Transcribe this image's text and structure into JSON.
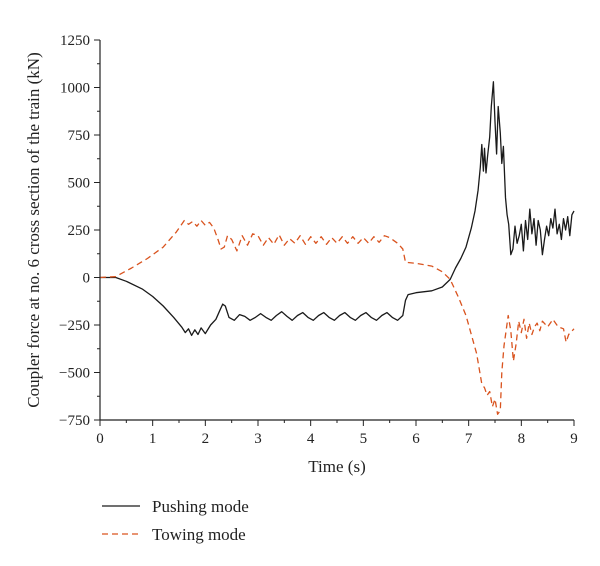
{
  "chart_data": {
    "type": "line",
    "title": "",
    "xlabel": "Time (s)",
    "ylabel": "Coupler force at no. 6 cross section of the train (kN)",
    "xlim": [
      0,
      9
    ],
    "ylim": [
      -750,
      1250
    ],
    "xticks": [
      "0",
      "1",
      "2",
      "3",
      "4",
      "5",
      "6",
      "7",
      "8",
      "9"
    ],
    "yticks": [
      "−750",
      "−500",
      "−250",
      "0",
      "250",
      "500",
      "750",
      "1000",
      "1250"
    ],
    "grid": false,
    "legend_position": "bottom-left, below plot",
    "series": [
      {
        "name": "Pushing mode",
        "color": "#1a1a1a",
        "dash": "solid",
        "points": [
          [
            0,
            0
          ],
          [
            0.3,
            0
          ],
          [
            0.5,
            -20
          ],
          [
            0.8,
            -60
          ],
          [
            1.0,
            -100
          ],
          [
            1.2,
            -150
          ],
          [
            1.4,
            -210
          ],
          [
            1.55,
            -260
          ],
          [
            1.62,
            -290
          ],
          [
            1.68,
            -270
          ],
          [
            1.74,
            -305
          ],
          [
            1.8,
            -275
          ],
          [
            1.86,
            -300
          ],
          [
            1.92,
            -265
          ],
          [
            2.0,
            -295
          ],
          [
            2.1,
            -250
          ],
          [
            2.2,
            -220
          ],
          [
            2.28,
            -170
          ],
          [
            2.33,
            -140
          ],
          [
            2.38,
            -150
          ],
          [
            2.45,
            -210
          ],
          [
            2.55,
            -225
          ],
          [
            2.65,
            -195
          ],
          [
            2.75,
            -205
          ],
          [
            2.85,
            -225
          ],
          [
            2.95,
            -210
          ],
          [
            3.05,
            -190
          ],
          [
            3.15,
            -210
          ],
          [
            3.25,
            -225
          ],
          [
            3.35,
            -200
          ],
          [
            3.45,
            -180
          ],
          [
            3.55,
            -205
          ],
          [
            3.65,
            -225
          ],
          [
            3.75,
            -200
          ],
          [
            3.85,
            -185
          ],
          [
            3.95,
            -210
          ],
          [
            4.05,
            -225
          ],
          [
            4.15,
            -200
          ],
          [
            4.25,
            -185
          ],
          [
            4.35,
            -210
          ],
          [
            4.45,
            -225
          ],
          [
            4.55,
            -200
          ],
          [
            4.65,
            -185
          ],
          [
            4.75,
            -210
          ],
          [
            4.85,
            -225
          ],
          [
            4.95,
            -200
          ],
          [
            5.05,
            -185
          ],
          [
            5.15,
            -210
          ],
          [
            5.25,
            -225
          ],
          [
            5.35,
            -200
          ],
          [
            5.45,
            -185
          ],
          [
            5.55,
            -210
          ],
          [
            5.65,
            -225
          ],
          [
            5.75,
            -200
          ],
          [
            5.8,
            -120
          ],
          [
            5.85,
            -90
          ],
          [
            6.0,
            -80
          ],
          [
            6.3,
            -70
          ],
          [
            6.5,
            -50
          ],
          [
            6.65,
            -10
          ],
          [
            6.75,
            50
          ],
          [
            6.85,
            100
          ],
          [
            6.95,
            160
          ],
          [
            7.05,
            260
          ],
          [
            7.12,
            350
          ],
          [
            7.18,
            460
          ],
          [
            7.22,
            580
          ],
          [
            7.25,
            700
          ],
          [
            7.28,
            560
          ],
          [
            7.3,
            680
          ],
          [
            7.33,
            550
          ],
          [
            7.36,
            640
          ],
          [
            7.4,
            740
          ],
          [
            7.43,
            900
          ],
          [
            7.47,
            1030
          ],
          [
            7.5,
            820
          ],
          [
            7.53,
            650
          ],
          [
            7.56,
            900
          ],
          [
            7.6,
            760
          ],
          [
            7.63,
            600
          ],
          [
            7.66,
            690
          ],
          [
            7.7,
            420
          ],
          [
            7.73,
            330
          ],
          [
            7.76,
            280
          ],
          [
            7.8,
            120
          ],
          [
            7.84,
            150
          ],
          [
            7.88,
            270
          ],
          [
            7.92,
            180
          ],
          [
            7.96,
            220
          ],
          [
            8.0,
            280
          ],
          [
            8.04,
            140
          ],
          [
            8.08,
            300
          ],
          [
            8.12,
            200
          ],
          [
            8.16,
            360
          ],
          [
            8.2,
            230
          ],
          [
            8.24,
            310
          ],
          [
            8.28,
            170
          ],
          [
            8.32,
            300
          ],
          [
            8.36,
            250
          ],
          [
            8.4,
            120
          ],
          [
            8.44,
            200
          ],
          [
            8.48,
            270
          ],
          [
            8.52,
            220
          ],
          [
            8.56,
            310
          ],
          [
            8.6,
            260
          ],
          [
            8.64,
            360
          ],
          [
            8.68,
            230
          ],
          [
            8.72,
            280
          ],
          [
            8.76,
            200
          ],
          [
            8.8,
            310
          ],
          [
            8.84,
            250
          ],
          [
            8.88,
            320
          ],
          [
            8.92,
            220
          ],
          [
            8.96,
            330
          ],
          [
            9.0,
            350
          ]
        ]
      },
      {
        "name": "Towing mode",
        "color": "#d9531e",
        "dash": "dashed",
        "points": [
          [
            0,
            0
          ],
          [
            0.3,
            5
          ],
          [
            0.6,
            50
          ],
          [
            0.9,
            100
          ],
          [
            1.2,
            160
          ],
          [
            1.45,
            240
          ],
          [
            1.6,
            300
          ],
          [
            1.68,
            280
          ],
          [
            1.76,
            295
          ],
          [
            1.84,
            270
          ],
          [
            1.92,
            300
          ],
          [
            2.0,
            275
          ],
          [
            2.08,
            290
          ],
          [
            2.16,
            260
          ],
          [
            2.24,
            200
          ],
          [
            2.3,
            150
          ],
          [
            2.36,
            160
          ],
          [
            2.42,
            220
          ],
          [
            2.5,
            200
          ],
          [
            2.6,
            140
          ],
          [
            2.7,
            220
          ],
          [
            2.8,
            170
          ],
          [
            2.9,
            230
          ],
          [
            3.0,
            220
          ],
          [
            3.1,
            170
          ],
          [
            3.2,
            210
          ],
          [
            3.3,
            175
          ],
          [
            3.4,
            225
          ],
          [
            3.5,
            170
          ],
          [
            3.6,
            205
          ],
          [
            3.7,
            180
          ],
          [
            3.8,
            220
          ],
          [
            3.9,
            175
          ],
          [
            4.0,
            215
          ],
          [
            4.1,
            180
          ],
          [
            4.2,
            215
          ],
          [
            4.3,
            175
          ],
          [
            4.4,
            210
          ],
          [
            4.5,
            180
          ],
          [
            4.6,
            215
          ],
          [
            4.7,
            180
          ],
          [
            4.8,
            215
          ],
          [
            4.9,
            180
          ],
          [
            5.0,
            210
          ],
          [
            5.1,
            180
          ],
          [
            5.2,
            215
          ],
          [
            5.3,
            185
          ],
          [
            5.4,
            220
          ],
          [
            5.5,
            210
          ],
          [
            5.65,
            180
          ],
          [
            5.75,
            150
          ],
          [
            5.8,
            80
          ],
          [
            6.0,
            75
          ],
          [
            6.3,
            60
          ],
          [
            6.5,
            30
          ],
          [
            6.65,
            -10
          ],
          [
            6.8,
            -100
          ],
          [
            6.95,
            -200
          ],
          [
            7.05,
            -300
          ],
          [
            7.15,
            -400
          ],
          [
            7.2,
            -480
          ],
          [
            7.25,
            -560
          ],
          [
            7.3,
            -580
          ],
          [
            7.35,
            -620
          ],
          [
            7.4,
            -600
          ],
          [
            7.45,
            -680
          ],
          [
            7.5,
            -640
          ],
          [
            7.55,
            -720
          ],
          [
            7.6,
            -700
          ],
          [
            7.63,
            -500
          ],
          [
            7.67,
            -360
          ],
          [
            7.71,
            -280
          ],
          [
            7.75,
            -200
          ],
          [
            7.8,
            -280
          ],
          [
            7.85,
            -440
          ],
          [
            7.9,
            -350
          ],
          [
            7.95,
            -230
          ],
          [
            8.0,
            -290
          ],
          [
            8.05,
            -220
          ],
          [
            8.1,
            -320
          ],
          [
            8.15,
            -240
          ],
          [
            8.2,
            -300
          ],
          [
            8.25,
            -260
          ],
          [
            8.3,
            -240
          ],
          [
            8.35,
            -280
          ],
          [
            8.4,
            -230
          ],
          [
            8.5,
            -260
          ],
          [
            8.6,
            -220
          ],
          [
            8.7,
            -260
          ],
          [
            8.8,
            -270
          ],
          [
            8.85,
            -340
          ],
          [
            8.9,
            -300
          ],
          [
            9.0,
            -270
          ]
        ]
      }
    ]
  }
}
